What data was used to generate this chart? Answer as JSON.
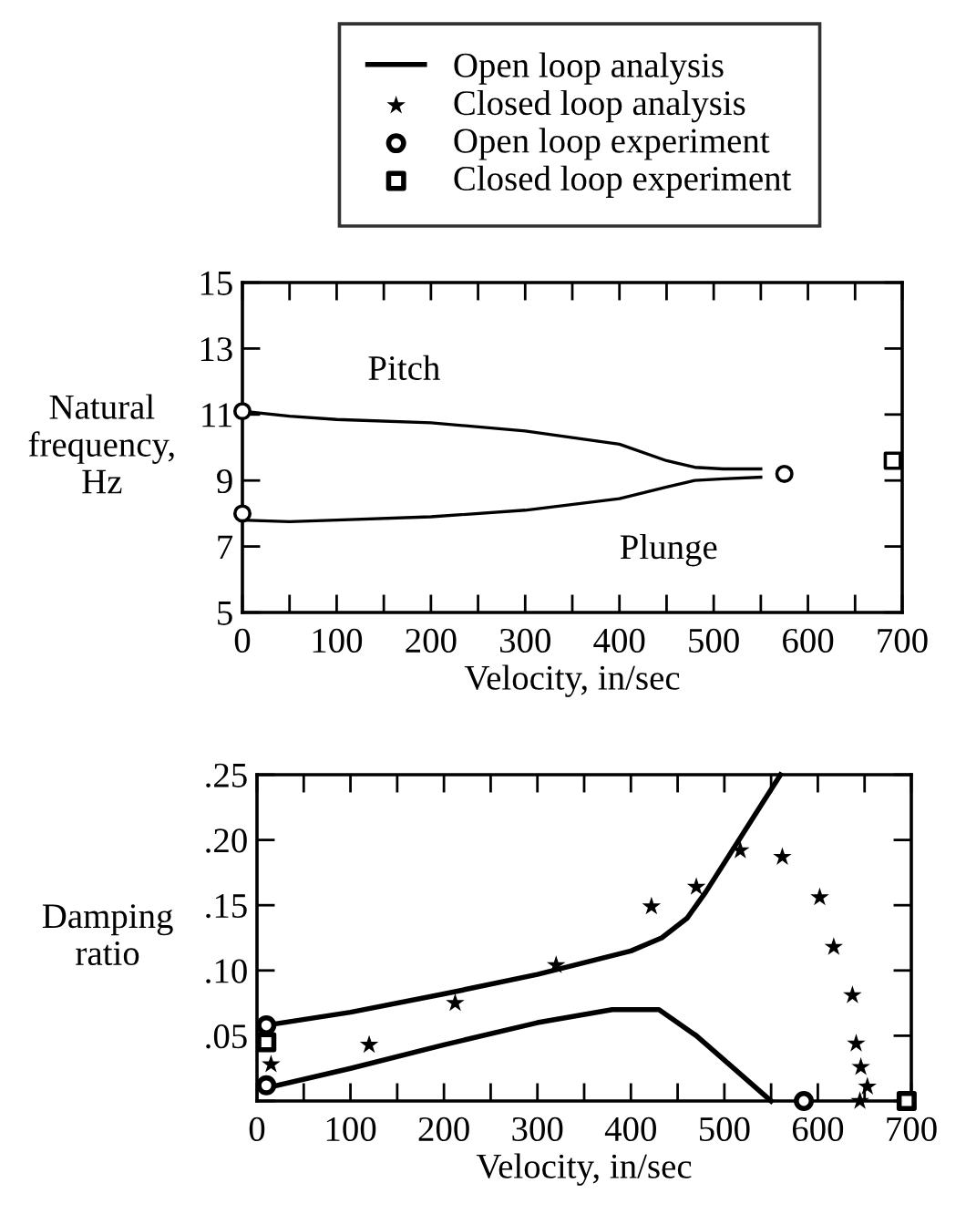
{
  "chart_data": [
    {
      "type": "line",
      "xlabel": "Velocity, in/sec",
      "ylabel": "Natural\nfrequency,\nHz",
      "xlim": [
        0,
        700
      ],
      "ylim": [
        5,
        15
      ],
      "xticks": [
        0,
        {
          "value": 50,
          "label": null
        },
        100,
        {
          "value": 150,
          "label": null
        },
        200,
        {
          "value": 250,
          "label": null
        },
        300,
        {
          "value": 350,
          "label": null
        },
        400,
        {
          "value": 450,
          "label": null
        },
        500,
        {
          "value": 550,
          "label": null
        },
        600,
        {
          "value": 650,
          "label": null
        },
        700
      ],
      "yticks": [
        5,
        7,
        9,
        11,
        13,
        15
      ],
      "annotations": [
        "Pitch",
        "Plunge"
      ],
      "series": [
        {
          "color": "#000000",
          "x": [
            0,
            50,
            100,
            200,
            300,
            400,
            450,
            480,
            510,
            550
          ],
          "values": [
            11.1,
            10.95,
            10.85,
            10.75,
            10.5,
            10.1,
            9.6,
            9.4,
            9.35,
            9.35
          ]
        },
        {
          "color": "#000000",
          "x": [
            0,
            50,
            100,
            200,
            300,
            400,
            450,
            480,
            510,
            550
          ],
          "values": [
            7.8,
            7.75,
            7.8,
            7.9,
            8.1,
            8.45,
            8.8,
            9.0,
            9.05,
            9.1
          ]
        },
        {
          "type": "scatter",
          "marker": "circle",
          "color": "#000000",
          "x": [
            0,
            0,
            575
          ],
          "values": [
            11.1,
            8.0,
            9.2
          ]
        },
        {
          "type": "scatter",
          "marker": "square",
          "color": "#000000",
          "x": [
            690
          ],
          "values": [
            9.6
          ]
        }
      ]
    },
    {
      "type": "line",
      "xlabel": "Velocity, in/sec",
      "ylabel": "Damping\nratio",
      "legend": "top",
      "xlim": [
        0,
        700
      ],
      "ylim": [
        0,
        0.25
      ],
      "xticks": [
        0,
        {
          "value": 50,
          "label": null
        },
        100,
        {
          "value": 150,
          "label": null
        },
        200,
        {
          "value": 250,
          "label": null
        },
        300,
        {
          "value": 350,
          "label": null
        },
        400,
        {
          "value": 450,
          "label": null
        },
        500,
        {
          "value": 550,
          "label": null
        },
        600,
        {
          "value": 650,
          "label": null
        },
        700
      ],
      "yticks": [
        {
          "value": 0,
          "label": null
        },
        {
          "value": 0.05,
          "label": ".05"
        },
        {
          "value": 0.1,
          "label": ".10"
        },
        {
          "value": 0.15,
          "label": ".15"
        },
        {
          "value": 0.2,
          "label": ".20"
        },
        {
          "value": 0.25,
          "label": ".25"
        }
      ],
      "series": [
        {
          "name": "Open loop analysis",
          "color": "#000000",
          "x": [
            10,
            100,
            200,
            300,
            400,
            433,
            460,
            480,
            520,
            560
          ],
          "values": [
            0.058,
            0.068,
            0.082,
            0.097,
            0.115,
            0.125,
            0.14,
            0.16,
            0.205,
            0.25
          ]
        },
        {
          "color": "#000000",
          "x": [
            10,
            100,
            200,
            300,
            380,
            430,
            470,
            510,
            550
          ],
          "values": [
            0.01,
            0.025,
            0.043,
            0.06,
            0.07,
            0.07,
            0.05,
            0.025,
            0.0
          ]
        },
        {
          "name": "Closed loop analysis",
          "type": "scatter",
          "marker": "star",
          "color": "#000000",
          "x": [
            15,
            120,
            212,
            320,
            422,
            470,
            517,
            562,
            602,
            617,
            637,
            641,
            646,
            653,
            645
          ],
          "values": [
            0.028,
            0.043,
            0.075,
            0.104,
            0.149,
            0.164,
            0.192,
            0.187,
            0.156,
            0.118,
            0.081,
            0.044,
            0.026,
            0.011,
            0.0
          ]
        },
        {
          "name": "Open loop experiment",
          "type": "scatter",
          "marker": "circle",
          "color": "#000000",
          "x": [
            10,
            10,
            585
          ],
          "values": [
            0.058,
            0.012,
            0.0
          ]
        },
        {
          "name": "Closed loop experiment",
          "type": "scatter",
          "marker": "square",
          "color": "#000000",
          "x": [
            10,
            695
          ],
          "values": [
            0.045,
            0.0
          ]
        }
      ]
    }
  ]
}
